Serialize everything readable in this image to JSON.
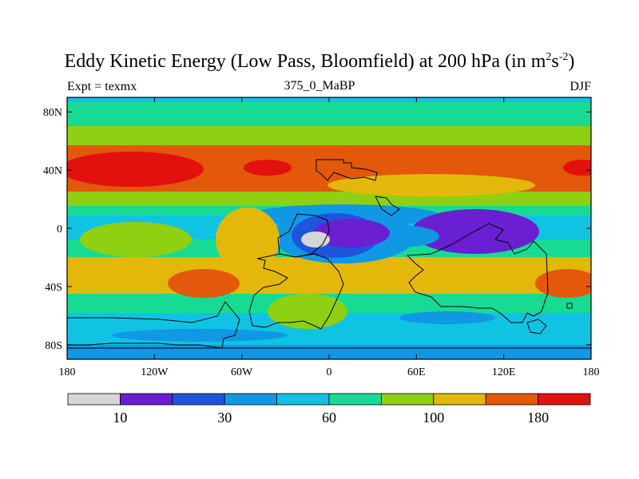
{
  "title": {
    "main": "Eddy Kinetic Energy (Low Pass, Bloomfield) at 200 hPa (in m",
    "sup1": "2",
    "mid": "s",
    "sup2": "-2",
    "end": ")"
  },
  "subtitle": {
    "left": "Expt = texmx",
    "center": "375_0_MaBP",
    "right": "DJF"
  },
  "map": {
    "lat_ticks": [
      "80N",
      "40N",
      "0",
      "40S",
      "80S"
    ],
    "lon_ticks": [
      "180",
      "120W",
      "60W",
      "0",
      "60E",
      "120E",
      "180"
    ],
    "lat_values": [
      80,
      40,
      0,
      -40,
      -80
    ],
    "lon_values": [
      -180,
      -120,
      -60,
      0,
      60,
      120,
      180
    ]
  },
  "colorbar": {
    "colors": [
      "#d6d6d6",
      "#6a1fd2",
      "#1e55dc",
      "#1098e4",
      "#11c3e3",
      "#17db93",
      "#8fd012",
      "#e3b80a",
      "#e3580a",
      "#e2110d"
    ],
    "labels": [
      {
        "text": "10",
        "index": 1
      },
      {
        "text": "30",
        "index": 3
      },
      {
        "text": "60",
        "index": 5
      },
      {
        "text": "100",
        "index": 7
      },
      {
        "text": "180",
        "index": 9
      }
    ]
  },
  "legend_colors_note_free": true
}
